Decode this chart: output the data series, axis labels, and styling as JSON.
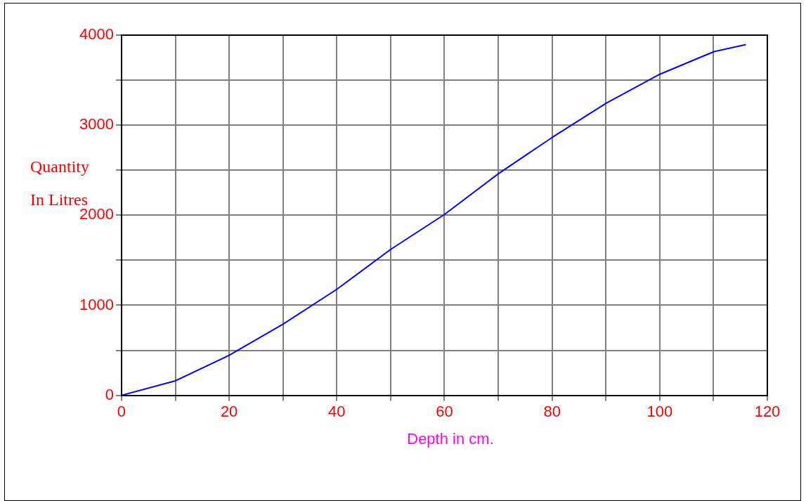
{
  "chart_data": {
    "type": "line",
    "xlabel": "Depth in cm.",
    "ylabel": "Quantity In Litres",
    "x": [
      0,
      10,
      20,
      30,
      40,
      50,
      60,
      70,
      80,
      90,
      100,
      110,
      116
    ],
    "series": [
      {
        "color": "#0000ff",
        "values": [
          0,
          161,
          444,
          790,
          1177,
          1620,
          2008,
          2460,
          2863,
          3242,
          3565,
          3815,
          3895
        ]
      }
    ],
    "xlim": [
      0,
      120
    ],
    "xticks": [
      0,
      {
        "value": 10,
        "label": null
      },
      20,
      {
        "value": 30,
        "label": null
      },
      40,
      {
        "value": 50,
        "label": null
      },
      60,
      {
        "value": 70,
        "label": null
      },
      80,
      {
        "value": 90,
        "label": null
      },
      100,
      {
        "value": 110,
        "label": null
      },
      120
    ],
    "ylim": [
      0,
      4000
    ],
    "yticks": [
      0,
      {
        "value": 500,
        "label": null
      },
      1000,
      {
        "value": 1500,
        "label": null
      },
      2000,
      {
        "value": 2500,
        "label": null
      },
      3000,
      {
        "value": 3500,
        "label": null
      },
      4000
    ],
    "grid": true,
    "legend": false,
    "marker": "none",
    "line_style": "solid"
  }
}
